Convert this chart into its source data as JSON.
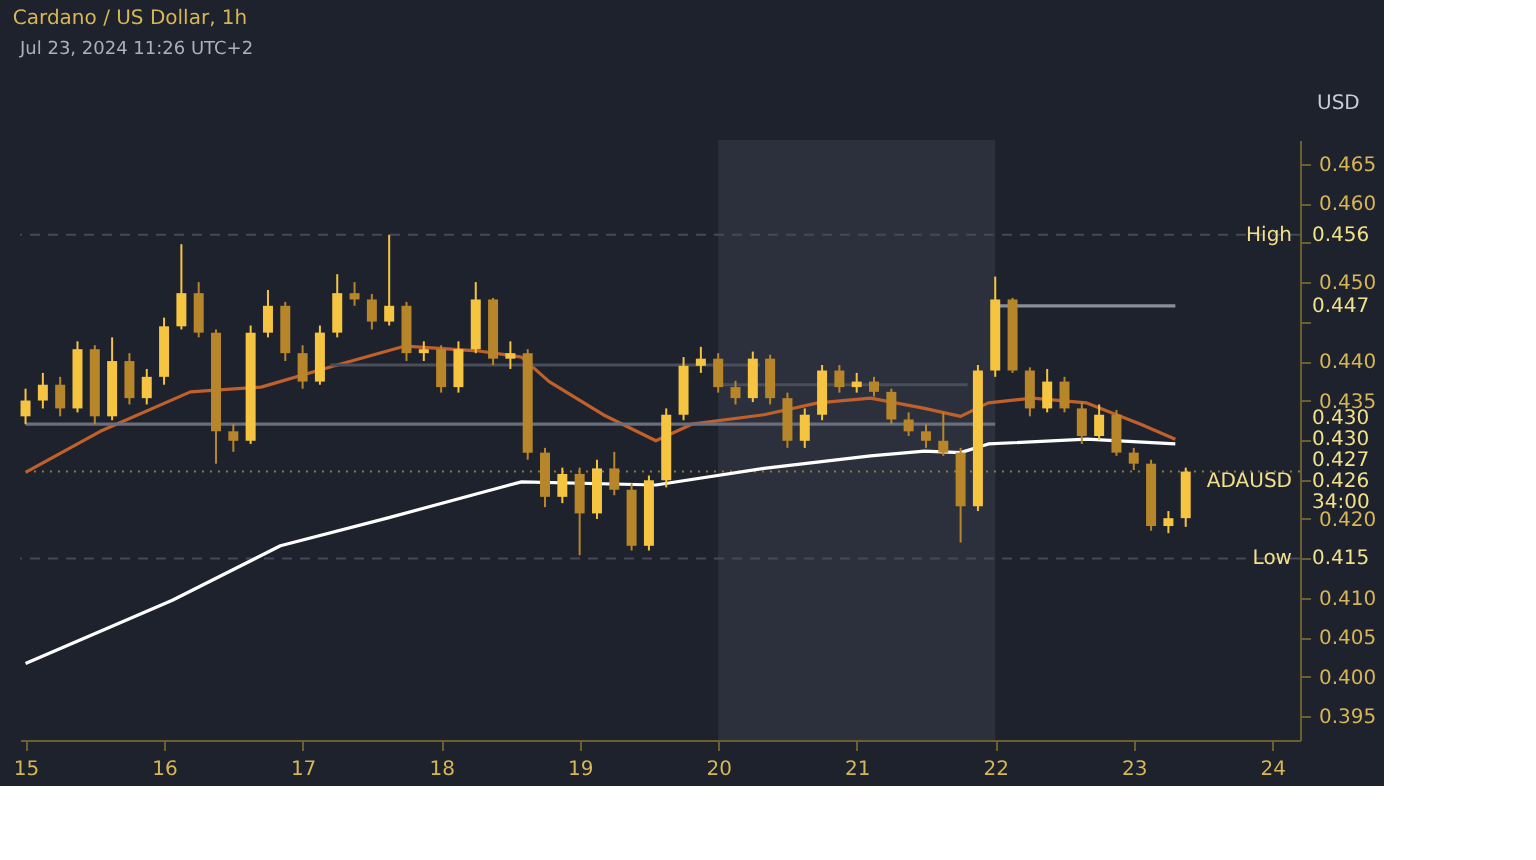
{
  "chart_data": {
    "type": "candlestick",
    "title": "Cardano / US Dollar, 1h",
    "ylabel": "USD",
    "annotations": [
      "Jul 23, 2024 11:26 UTC+2",
      "0.456",
      "0.426",
      "0.415",
      "0.447",
      "0.430",
      "0.430",
      "0.427",
      "34:00"
    ],
    "colors": [
      "#f5c542",
      "#f5c542",
      "#b8862a",
      "#f5c542",
      "#b8862a",
      "#f5c542",
      "#b8862a",
      "#f5c542",
      "#f5c542",
      "#f5c542",
      "#b8862a",
      "#b8862a",
      "#b8862a",
      "#f5c542",
      "#f5c542",
      "#b8862a",
      "#b8862a",
      "#f5c542",
      "#f5c542",
      "#b8862a",
      "#b8862a",
      "#f5c542",
      "#b8862a",
      "#f5c542",
      "#b8862a",
      "#f5c542",
      "#f5c542",
      "#b8862a",
      "#f5c542",
      "#b8862a",
      "#b8862a",
      "#f5c542",
      "#b8862a",
      "#f5c542",
      "#b8862a",
      "#b8862a",
      "#f5c542",
      "#f5c542",
      "#f5c542",
      "#f5c542",
      "#b8862a",
      "#b8862a",
      "#f5c542",
      "#b8862a",
      "#b8862a",
      "#f5c542",
      "#f5c542",
      "#b8862a",
      "#f5c542",
      "#b8862a",
      "#b8862a",
      "#b8862a",
      "#b8862a",
      "#b8862a",
      "#b8862a",
      "#f5c542",
      "#f5c542",
      "#b8862a",
      "#b8862a",
      "#f5c542",
      "#b8862a",
      "#b8862a",
      "#f5c542",
      "#b8862a",
      "#b8862a",
      "#b8862a",
      "#f5c542",
      "#f5c542"
    ],
    "x": [
      15.0,
      15.125,
      15.25,
      15.375,
      15.5,
      15.625,
      15.75,
      15.875,
      16.0,
      16.125,
      16.25,
      16.375,
      16.5,
      16.625,
      16.75,
      16.875,
      17.0,
      17.125,
      17.25,
      17.375,
      17.5,
      17.625,
      17.75,
      17.875,
      18.0,
      18.125,
      18.25,
      18.375,
      18.5,
      18.625,
      18.75,
      18.875,
      19.0,
      19.125,
      19.25,
      19.375,
      19.5,
      19.625,
      19.75,
      19.875,
      20.0,
      20.125,
      20.25,
      20.375,
      20.5,
      20.625,
      20.75,
      20.875,
      21.0,
      21.125,
      21.25,
      21.375,
      21.5,
      21.625,
      21.75,
      21.875,
      22.0,
      22.125,
      22.25,
      22.375,
      22.5,
      22.625,
      22.75,
      22.875,
      23.0,
      23.125,
      23.25,
      23.375
    ],
    "ohlc": [
      [
        0.433,
        0.4365,
        0.432,
        0.435
      ],
      [
        0.435,
        0.4385,
        0.434,
        0.437
      ],
      [
        0.437,
        0.438,
        0.433,
        0.434
      ],
      [
        0.434,
        0.4425,
        0.4335,
        0.4415
      ],
      [
        0.4415,
        0.442,
        0.432,
        0.433
      ],
      [
        0.433,
        0.443,
        0.4325,
        0.44
      ],
      [
        0.44,
        0.441,
        0.4345,
        0.4353
      ],
      [
        0.4353,
        0.439,
        0.4345,
        0.438
      ],
      [
        0.438,
        0.4455,
        0.437,
        0.4444
      ],
      [
        0.4444,
        0.4548,
        0.444,
        0.4486
      ],
      [
        0.4486,
        0.45,
        0.443,
        0.4436
      ],
      [
        0.4436,
        0.444,
        0.427,
        0.4311
      ],
      [
        0.4311,
        0.432,
        0.4285,
        0.4299
      ],
      [
        0.4299,
        0.4445,
        0.4295,
        0.4436
      ],
      [
        0.4436,
        0.449,
        0.443,
        0.447
      ],
      [
        0.447,
        0.4475,
        0.44,
        0.441
      ],
      [
        0.441,
        0.442,
        0.4365,
        0.4374
      ],
      [
        0.4374,
        0.4445,
        0.437,
        0.4436
      ],
      [
        0.4436,
        0.451,
        0.443,
        0.4486
      ],
      [
        0.4486,
        0.45,
        0.447,
        0.4478
      ],
      [
        0.4478,
        0.4485,
        0.444,
        0.445
      ],
      [
        0.445,
        0.456,
        0.4445,
        0.447
      ],
      [
        0.447,
        0.4475,
        0.44,
        0.441
      ],
      [
        0.441,
        0.4425,
        0.44,
        0.4415
      ],
      [
        0.4415,
        0.442,
        0.436,
        0.4367
      ],
      [
        0.4367,
        0.4425,
        0.436,
        0.4415
      ],
      [
        0.4415,
        0.45,
        0.441,
        0.4478
      ],
      [
        0.4478,
        0.448,
        0.4395,
        0.4403
      ],
      [
        0.4403,
        0.4425,
        0.439,
        0.441
      ],
      [
        0.441,
        0.4415,
        0.4275,
        0.4284
      ],
      [
        0.4284,
        0.429,
        0.4215,
        0.4228
      ],
      [
        0.4228,
        0.4265,
        0.422,
        0.4257
      ],
      [
        0.4257,
        0.4265,
        0.4154,
        0.4207
      ],
      [
        0.4207,
        0.4275,
        0.42,
        0.4264
      ],
      [
        0.4264,
        0.4285,
        0.423,
        0.4237
      ],
      [
        0.4237,
        0.4245,
        0.416,
        0.4166
      ],
      [
        0.4166,
        0.4255,
        0.416,
        0.4249
      ],
      [
        0.4249,
        0.434,
        0.424,
        0.4332
      ],
      [
        0.4332,
        0.4405,
        0.4325,
        0.4394
      ],
      [
        0.4394,
        0.4418,
        0.4385,
        0.4403
      ],
      [
        0.4403,
        0.441,
        0.436,
        0.4367
      ],
      [
        0.4367,
        0.4375,
        0.4345,
        0.4353
      ],
      [
        0.4353,
        0.4412,
        0.4348,
        0.4403
      ],
      [
        0.4403,
        0.4408,
        0.4345,
        0.4353
      ],
      [
        0.4353,
        0.436,
        0.429,
        0.4299
      ],
      [
        0.4299,
        0.434,
        0.429,
        0.4332
      ],
      [
        0.4332,
        0.4395,
        0.4325,
        0.4388
      ],
      [
        0.4388,
        0.4395,
        0.436,
        0.4367
      ],
      [
        0.4367,
        0.4385,
        0.436,
        0.4374
      ],
      [
        0.4374,
        0.438,
        0.4355,
        0.4361
      ],
      [
        0.4361,
        0.4365,
        0.432,
        0.4326
      ],
      [
        0.4326,
        0.4335,
        0.4305,
        0.4311
      ],
      [
        0.4311,
        0.432,
        0.429,
        0.4299
      ],
      [
        0.4299,
        0.4335,
        0.428,
        0.4284
      ],
      [
        0.4284,
        0.429,
        0.417,
        0.4216
      ],
      [
        0.4216,
        0.4395,
        0.421,
        0.4388
      ],
      [
        0.4388,
        0.4507,
        0.438,
        0.4478
      ],
      [
        0.4478,
        0.448,
        0.4385,
        0.4388
      ],
      [
        0.4388,
        0.4392,
        0.433,
        0.434
      ],
      [
        0.434,
        0.439,
        0.4335,
        0.4374
      ],
      [
        0.4374,
        0.438,
        0.4335,
        0.434
      ],
      [
        0.434,
        0.4348,
        0.4295,
        0.4305
      ],
      [
        0.4305,
        0.4345,
        0.43,
        0.4332
      ],
      [
        0.4332,
        0.4338,
        0.428,
        0.4284
      ],
      [
        0.4284,
        0.429,
        0.4262,
        0.427
      ],
      [
        0.427,
        0.4275,
        0.4185,
        0.4191
      ],
      [
        0.4191,
        0.421,
        0.4182,
        0.4201
      ],
      [
        0.4201,
        0.4265,
        0.419,
        0.426
      ]
    ],
    "series": [
      {
        "type": "line",
        "color": "#c0602a",
        "x": [
          15.0,
          15.54,
          16.19,
          16.7,
          17.23,
          17.74,
          18.26,
          18.58,
          18.78,
          19.17,
          19.55,
          19.81,
          20.33,
          20.72,
          21.1,
          21.49,
          21.75,
          21.95,
          22.27,
          22.66,
          23.05,
          23.3
        ],
        "values": [
          0.4259,
          0.4311,
          0.4361,
          0.4367,
          0.4394,
          0.4419,
          0.4413,
          0.4405,
          0.4374,
          0.4332,
          0.4299,
          0.432,
          0.4332,
          0.4347,
          0.4353,
          0.434,
          0.433,
          0.4347,
          0.4353,
          0.4347,
          0.432,
          0.4301
        ]
      },
      {
        "type": "line",
        "color": "#ffffff",
        "x": [
          15.0,
          16.06,
          16.84,
          17.61,
          18.26,
          18.58,
          19.55,
          20.33,
          21.1,
          21.49,
          21.75,
          21.95,
          22.66,
          23.3
        ],
        "values": [
          0.4017,
          0.4097,
          0.4166,
          0.4201,
          0.4232,
          0.4247,
          0.4243,
          0.4264,
          0.428,
          0.4286,
          0.4284,
          0.4295,
          0.4301,
          0.4295
        ]
      },
      {
        "type": "line",
        "color": "#8a8f9c",
        "x": [
          22.0,
          23.3
        ],
        "values": [
          0.447,
          0.447
        ]
      },
      {
        "type": "line",
        "color": "#6a6e7a",
        "x": [
          15.0,
          22.0
        ],
        "values": [
          0.432,
          0.432
        ]
      },
      {
        "type": "line",
        "color": "#4a4e5a",
        "x": [
          17.2,
          20.3
        ],
        "values": [
          0.4395,
          0.4395
        ]
      },
      {
        "type": "line",
        "color": "#4a4e5a",
        "x": [
          20.0,
          21.8
        ],
        "values": [
          0.437,
          0.437
        ]
      }
    ],
    "ref_lines": [
      {
        "axis": "y",
        "value": 0.456,
        "label": "High",
        "color": "#44485a",
        "line_style": "dashed"
      },
      {
        "axis": "y",
        "value": 0.426,
        "label": "ADAUSD",
        "color": "#8a7a40",
        "line_style": "dotted"
      },
      {
        "axis": "y",
        "value": 0.415,
        "label": "Low",
        "color": "#44485a",
        "line_style": "dashed"
      }
    ],
    "bands": [
      {
        "axis": "x",
        "from": 20.0,
        "to": 22.0,
        "color": "#2c303c"
      }
    ],
    "xlim": [
      14.96,
      24.2
    ],
    "xticks": [
      15,
      16,
      17,
      18,
      19,
      20,
      21,
      22,
      23,
      24
    ],
    "ylim": [
      0.392,
      0.468
    ],
    "yticks": [
      0.395,
      {
        "value": 0.4,
        "label": "0.400"
      },
      0.405,
      {
        "value": 0.41,
        "label": "0.410"
      },
      {
        "value": 0.415,
        "label": null
      },
      {
        "value": 0.42,
        "label": "0.420"
      },
      {
        "value": 0.425,
        "label": null
      },
      {
        "value": 0.43,
        "label": null
      },
      0.435,
      {
        "value": 0.44,
        "label": "0.440"
      },
      {
        "value": 0.445,
        "label": null
      },
      {
        "value": 0.45,
        "label": "0.450"
      },
      {
        "value": 0.455,
        "label": null
      },
      {
        "value": 0.46,
        "label": "0.460"
      },
      0.465
    ],
    "line_style": "solid",
    "marker": "none",
    "grid": false
  }
}
